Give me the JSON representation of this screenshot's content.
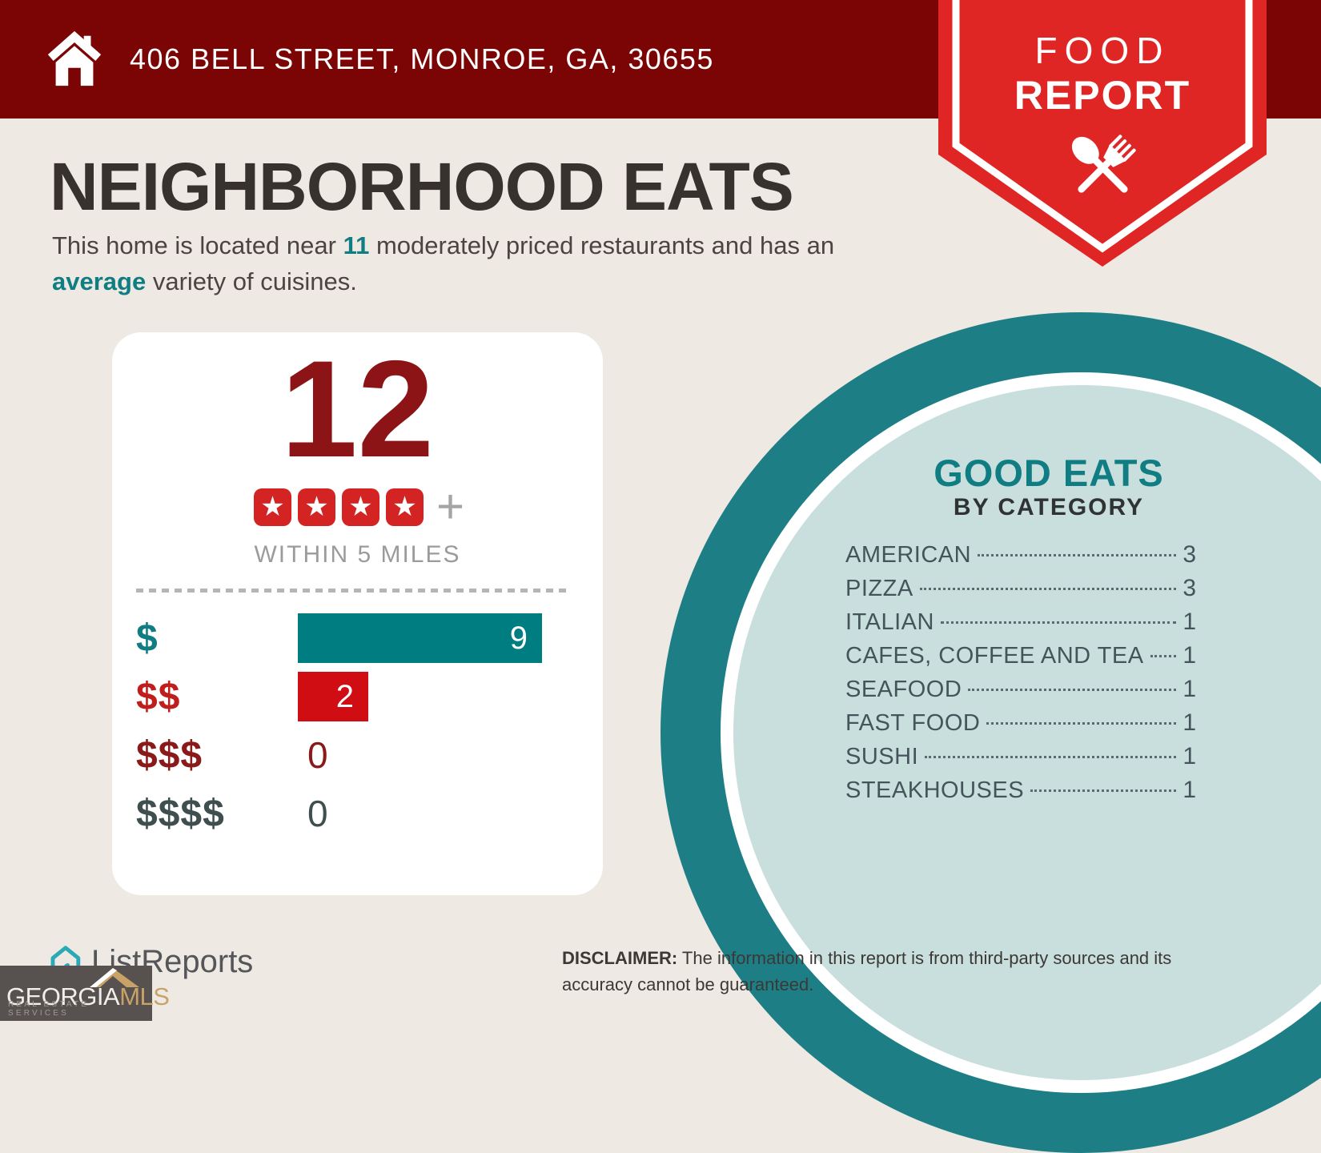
{
  "header": {
    "address": "406 BELL STREET, MONROE, GA, 30655"
  },
  "ribbon": {
    "title_line1": "FOOD",
    "title_line2": "REPORT"
  },
  "page": {
    "title": "NEIGHBORHOOD EATS"
  },
  "intro": {
    "pre": "This home is located near ",
    "count": "11",
    "mid": " moderately priced restaurants and has an ",
    "emphasis": "average",
    "post": " variety of cuisines."
  },
  "summary": {
    "count": "12",
    "stars": 4,
    "plus": "+",
    "caption": "WITHIN 5 MILES"
  },
  "chart_data": {
    "type": "bar",
    "orientation": "horizontal",
    "categories": [
      "$",
      "$$",
      "$$$",
      "$$$$"
    ],
    "values": [
      9,
      2,
      0,
      0
    ],
    "xlim": [
      0,
      9
    ],
    "value_labels": "inside-end",
    "bar_colors": [
      "#007d81",
      "#cf0d12",
      null,
      null
    ],
    "label_colors": [
      "#0f7d82",
      "#c01d1d",
      "#8a1a1a",
      "#3f4f50"
    ],
    "grid": false,
    "legend": false
  },
  "category_panel": {
    "title": "GOOD EATS",
    "subtitle": "BY CATEGORY",
    "items": [
      {
        "label": "AMERICAN",
        "value": 3
      },
      {
        "label": "PIZZA",
        "value": 3
      },
      {
        "label": "ITALIAN",
        "value": 1
      },
      {
        "label": "CAFES, COFFEE AND TEA",
        "value": 1
      },
      {
        "label": "SEAFOOD",
        "value": 1
      },
      {
        "label": "FAST FOOD",
        "value": 1
      },
      {
        "label": "SUSHI",
        "value": 1
      },
      {
        "label": "STEAKHOUSES",
        "value": 1
      }
    ]
  },
  "footer": {
    "brand": "ListReports",
    "mls_badge": {
      "line1": "GEORGIA",
      "line2": "MLS",
      "tagline": "REAL ESTATE SERVICES"
    },
    "disclaimer_bold": "DISCLAIMER:",
    "disclaimer_text": " The information in this report is from third-party sources and its accuracy cannot be guaranteed."
  },
  "colors": {
    "top_bar": "#7b0505",
    "ribbon_red": "#e02525",
    "dark_red_number": "#8c1316",
    "teal_accent": "#0f7d82",
    "bar_teal": "#007d81",
    "bar_red": "#cf0d12",
    "circle_teal": "#1d7f85",
    "circle_light": "#c8dfdd",
    "star_red": "#d32323"
  }
}
